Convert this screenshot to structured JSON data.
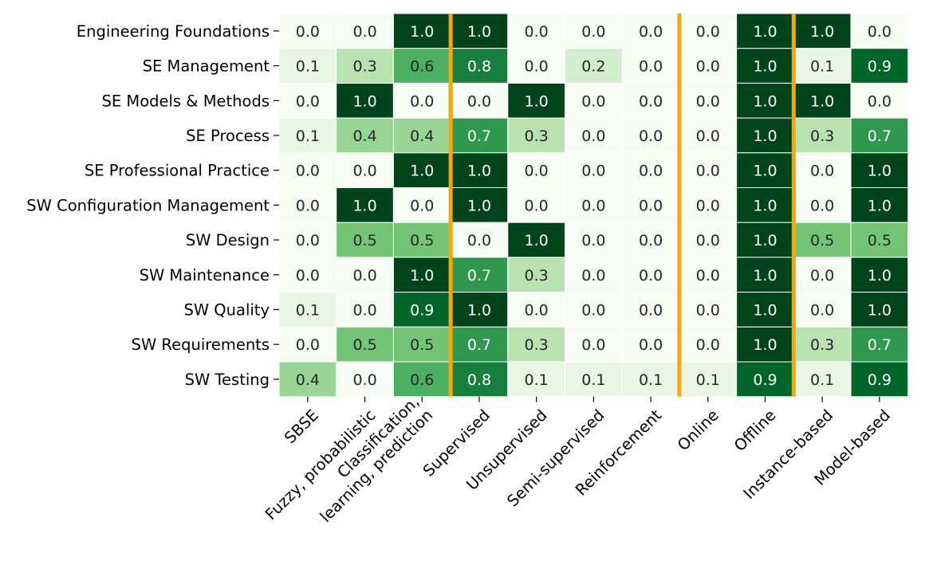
{
  "chart_data": {
    "type": "heatmap",
    "title": "",
    "xlabel": "",
    "ylabel": "",
    "rows": [
      "Engineering Foundations",
      "SE Management",
      "SE Models & Methods",
      "SE Process",
      "SE Professional Practice",
      "SW Configuration Management",
      "SW Design",
      "SW Maintenance",
      "SW Quality",
      "SW Requirements",
      "SW Testing"
    ],
    "columns": [
      "SBSE",
      "Fuzzy, probabilistic",
      "Classification,\nlearning, prediction",
      "Supervised",
      "Unsupervised",
      "Semi-supervised",
      "Reinforcement",
      "Online",
      "Offline",
      "Instance-based",
      "Model-based"
    ],
    "values": [
      [
        0.0,
        0.0,
        1.0,
        1.0,
        0.0,
        0.0,
        0.0,
        0.0,
        1.0,
        1.0,
        0.0
      ],
      [
        0.1,
        0.3,
        0.6,
        0.8,
        0.0,
        0.2,
        0.0,
        0.0,
        1.0,
        0.1,
        0.9
      ],
      [
        0.0,
        1.0,
        0.0,
        0.0,
        1.0,
        0.0,
        0.0,
        0.0,
        1.0,
        1.0,
        0.0
      ],
      [
        0.1,
        0.4,
        0.4,
        0.7,
        0.3,
        0.0,
        0.0,
        0.0,
        1.0,
        0.3,
        0.7
      ],
      [
        0.0,
        0.0,
        1.0,
        1.0,
        0.0,
        0.0,
        0.0,
        0.0,
        1.0,
        0.0,
        1.0
      ],
      [
        0.0,
        1.0,
        0.0,
        1.0,
        0.0,
        0.0,
        0.0,
        0.0,
        1.0,
        0.0,
        1.0
      ],
      [
        0.0,
        0.5,
        0.5,
        0.0,
        1.0,
        0.0,
        0.0,
        0.0,
        1.0,
        0.5,
        0.5
      ],
      [
        0.0,
        0.0,
        1.0,
        0.7,
        0.3,
        0.0,
        0.0,
        0.0,
        1.0,
        0.0,
        1.0
      ],
      [
        0.1,
        0.0,
        0.9,
        1.0,
        0.0,
        0.0,
        0.0,
        0.0,
        1.0,
        0.0,
        1.0
      ],
      [
        0.0,
        0.5,
        0.5,
        0.7,
        0.3,
        0.0,
        0.0,
        0.0,
        1.0,
        0.3,
        0.7
      ],
      [
        0.4,
        0.0,
        0.6,
        0.8,
        0.1,
        0.1,
        0.1,
        0.1,
        0.9,
        0.1,
        0.9
      ]
    ],
    "value_range": [
      0.0,
      1.0
    ],
    "colormap": "Greens",
    "colors": {
      "low": "#f7fcf5",
      "high": "#00441b",
      "separator": "#ffa500",
      "text_dark": "#262626",
      "text_light": "#ffffff"
    },
    "column_group_separators_after": [
      "SBSE... Classification",
      "Reinforcement",
      "Offline"
    ],
    "separator_after_column_index": [
      2,
      6,
      8
    ],
    "grid": false,
    "legend": "none"
  }
}
